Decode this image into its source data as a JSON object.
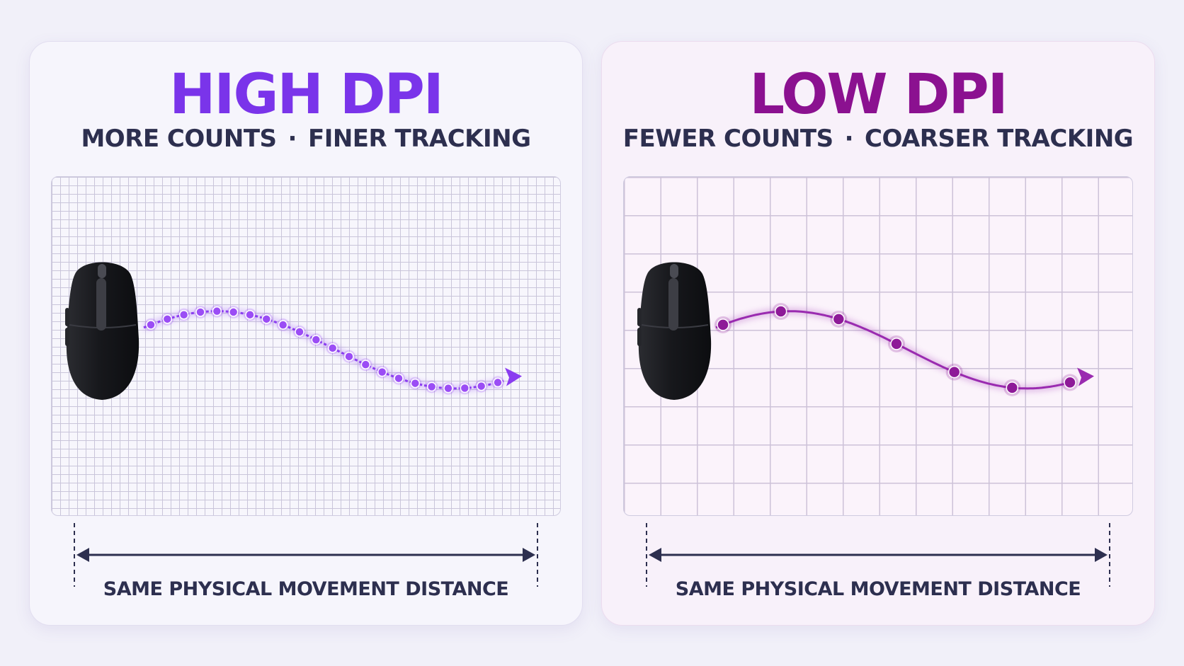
{
  "panels": [
    {
      "id": "high",
      "title": "HIGH DPI",
      "subtitle_left": "MORE COUNTS",
      "subtitle_sep": "·",
      "subtitle_right": "FINER TRACKING",
      "caption": "SAME PHYSICAL MOVEMENT DISTANCE",
      "title_color": "#7a34ea",
      "trace_color": "#8a3cf0",
      "dot_color": "#9b4df5",
      "dot_count": 22
    },
    {
      "id": "low",
      "title": "LOW DPI",
      "subtitle_left": "FEWER COUNTS",
      "subtitle_sep": "·",
      "subtitle_right": "COARSER TRACKING",
      "caption": "SAME PHYSICAL MOVEMENT DISTANCE",
      "title_color": "#8b1190",
      "trace_color": "#9a2bb0",
      "dot_color": "#8e1a98",
      "dot_count": 7
    }
  ],
  "icons": {
    "mouse": "computer-mouse-icon",
    "arrow": "arrow-right-icon",
    "measure": "double-arrow-icon"
  }
}
